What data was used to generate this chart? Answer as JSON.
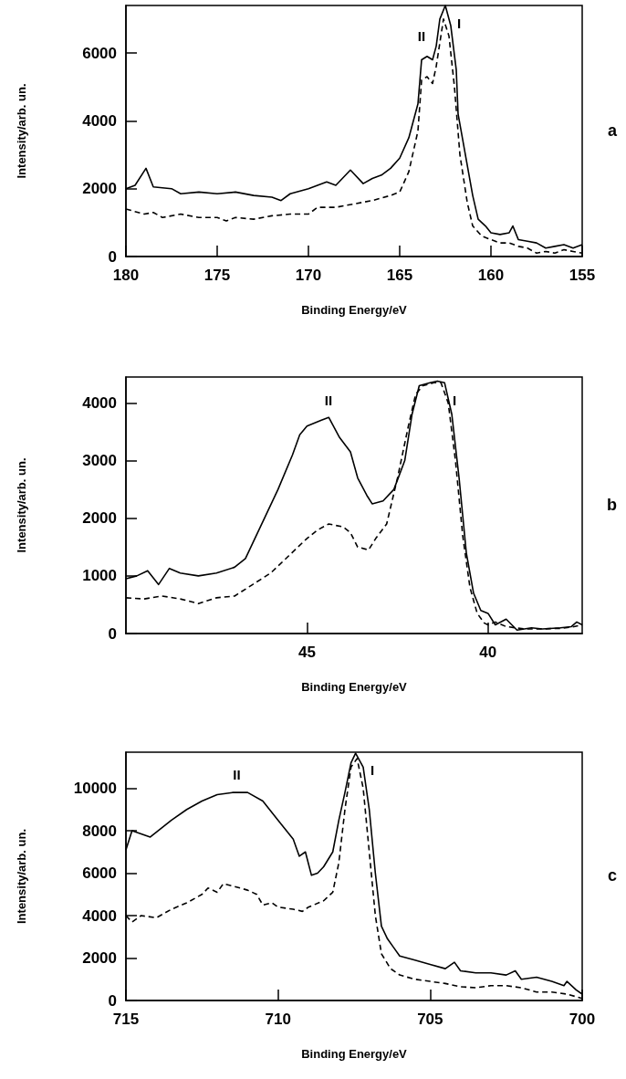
{
  "chart_data": [
    {
      "type": "line",
      "xlabel": "Binding Energy/eV",
      "ylabel": "Intensity/arb. un.",
      "xlim": [
        180,
        155
      ],
      "xticks": [
        180,
        175,
        170,
        165,
        160,
        155
      ],
      "ylim": [
        0,
        7400
      ],
      "yticks": [
        0,
        2000,
        4000,
        6000
      ],
      "grid": false,
      "x": [
        180,
        179.5,
        178.9,
        178.5,
        177.5,
        177,
        176,
        175,
        174,
        173,
        172,
        171.5,
        171,
        170,
        169,
        168.5,
        167.7,
        167,
        166.5,
        166,
        165.5,
        165,
        164.5,
        164,
        163.8,
        163.5,
        163.2,
        163,
        162.8,
        162.5,
        162.2,
        161.9,
        161.8,
        161.5,
        161,
        160.7,
        160.3,
        160,
        159.5,
        159,
        158.8,
        158.5,
        158,
        157.5,
        157,
        156.5,
        156,
        155.5,
        155
      ],
      "series": [
        {
          "color": "#000000",
          "line_style": "solid",
          "values": [
            2000,
            2100,
            2600,
            2050,
            2000,
            1850,
            1900,
            1850,
            1900,
            1800,
            1750,
            1650,
            1850,
            2000,
            2200,
            2100,
            2550,
            2150,
            2300,
            2400,
            2600,
            2900,
            3500,
            4500,
            5800,
            5900,
            5800,
            6200,
            7000,
            7400,
            6800,
            5500,
            4200,
            3300,
            1800,
            1100,
            900,
            700,
            650,
            700,
            900,
            500,
            450,
            400,
            250,
            300,
            350,
            250,
            350
          ]
        },
        {
          "color": "#000000",
          "line_style": "dashed",
          "x": [
            180,
            179,
            178.5,
            178,
            177,
            176,
            175,
            174.5,
            174,
            173,
            172,
            171,
            170,
            169.5,
            168.5,
            167.5,
            166.5,
            165.5,
            165,
            164.5,
            164,
            163.8,
            163.5,
            163.2,
            163,
            162.8,
            162.6,
            162.3,
            162,
            161.7,
            161.3,
            161,
            160.5,
            160,
            159.5,
            159,
            158.5,
            158,
            157.5,
            157,
            156.5,
            156,
            155.5,
            155
          ],
          "values": [
            1400,
            1250,
            1300,
            1150,
            1250,
            1150,
            1150,
            1050,
            1150,
            1100,
            1200,
            1250,
            1250,
            1450,
            1450,
            1550,
            1650,
            1800,
            1900,
            2500,
            3700,
            5200,
            5300,
            5100,
            5600,
            6300,
            7000,
            6500,
            5000,
            3000,
            1600,
            900,
            600,
            500,
            400,
            400,
            300,
            250,
            100,
            150,
            100,
            200,
            150,
            100
          ]
        }
      ],
      "annotations": [
        "II",
        "I",
        "a"
      ]
    },
    {
      "type": "line",
      "xlabel": "Binding Energy/eV",
      "ylabel": "Intensity/arb. un.",
      "xlim": [
        50,
        37.4
      ],
      "xticks": [
        45,
        40
      ],
      "ylim": [
        0,
        4450
      ],
      "yticks": [
        0,
        1000,
        2000,
        3000,
        4000
      ],
      "grid": false,
      "x": [
        50,
        49.7,
        49.4,
        49.1,
        48.8,
        48.5,
        48,
        47.5,
        47,
        46.7,
        46.4,
        46.1,
        45.8,
        45.4,
        45.2,
        45,
        44.6,
        44.4,
        44.1,
        43.8,
        43.6,
        43.35,
        43.2,
        42.9,
        42.6,
        42.3,
        42.1,
        41.9,
        41.6,
        41.4,
        41.2,
        41,
        40.8,
        40.6,
        40.4,
        40.2,
        40,
        39.8,
        39.5,
        39.2,
        38.8,
        38.5,
        38,
        37.7,
        37.55,
        37.4
      ],
      "series": [
        {
          "color": "#000000",
          "line_style": "solid",
          "values": [
            950,
            1000,
            1090,
            850,
            1130,
            1050,
            1000,
            1050,
            1150,
            1300,
            1700,
            2100,
            2500,
            3100,
            3450,
            3600,
            3700,
            3750,
            3400,
            3150,
            2700,
            2400,
            2250,
            2300,
            2500,
            3000,
            3800,
            4300,
            4350,
            4380,
            4350,
            3800,
            2700,
            1400,
            700,
            400,
            350,
            150,
            250,
            60,
            100,
            80,
            100,
            120,
            200,
            150
          ]
        },
        {
          "color": "#000000",
          "line_style": "dashed",
          "x": [
            50,
            49.5,
            49,
            48.5,
            48,
            47.5,
            47,
            46.5,
            46,
            45.5,
            45,
            44.7,
            44.4,
            44,
            43.8,
            43.6,
            43.3,
            43.1,
            42.8,
            42.5,
            42.2,
            42,
            41.8,
            41.5,
            41.3,
            41.1,
            40.9,
            40.7,
            40.5,
            40.3,
            40.1,
            40,
            39.8,
            39.5,
            39,
            38.5,
            38,
            37.7,
            37.4
          ],
          "values": [
            620,
            600,
            650,
            600,
            520,
            620,
            650,
            850,
            1050,
            1350,
            1650,
            1800,
            1900,
            1850,
            1750,
            1500,
            1450,
            1650,
            1900,
            2700,
            3600,
            4150,
            4300,
            4350,
            4350,
            4000,
            3000,
            1700,
            800,
            350,
            180,
            150,
            200,
            120,
            80,
            80,
            90,
            110,
            150
          ]
        }
      ],
      "annotations": [
        "II",
        "I",
        "b"
      ]
    },
    {
      "type": "line",
      "xlabel": "Binding Energy/eV",
      "ylabel": "Intensity/arb. un.",
      "xlim": [
        715,
        700
      ],
      "xticks": [
        715,
        710,
        705,
        700
      ],
      "ylim": [
        0,
        11700
      ],
      "yticks": [
        0,
        2000,
        4000,
        6000,
        8000,
        10000
      ],
      "grid": false,
      "x": [
        715,
        714.8,
        714.5,
        714.2,
        713.5,
        713,
        712.5,
        712,
        711.5,
        711,
        710.5,
        710,
        709.5,
        709.3,
        709.1,
        708.9,
        708.7,
        708.5,
        708.2,
        708,
        707.8,
        707.6,
        707.45,
        707.2,
        707,
        706.8,
        706.6,
        706.4,
        706.2,
        706,
        705.5,
        705,
        704.5,
        704.2,
        704,
        703.5,
        703,
        702.5,
        702.2,
        702,
        701.5,
        701,
        700.6,
        700.5,
        700.2,
        700
      ],
      "series": [
        {
          "color": "#000000",
          "line_style": "solid",
          "values": [
            7100,
            8000,
            7850,
            7700,
            8500,
            9000,
            9400,
            9700,
            9800,
            9800,
            9400,
            8500,
            7600,
            6800,
            7000,
            5900,
            6000,
            6300,
            7000,
            8500,
            9800,
            11200,
            11650,
            11000,
            9000,
            6000,
            3500,
            2900,
            2500,
            2100,
            1900,
            1700,
            1500,
            1800,
            1400,
            1300,
            1300,
            1200,
            1400,
            1000,
            1100,
            900,
            700,
            900,
            500,
            300
          ]
        },
        {
          "color": "#000000",
          "line_style": "dashed",
          "x": [
            715,
            714.8,
            714.5,
            714,
            713.5,
            713,
            712.5,
            712.3,
            712,
            711.8,
            711.5,
            711,
            710.7,
            710.5,
            710.2,
            710,
            709.5,
            709.2,
            709,
            708.5,
            708.2,
            708,
            707.8,
            707.6,
            707.4,
            707.2,
            707,
            706.8,
            706.6,
            706.3,
            706,
            705.5,
            705,
            704.5,
            704,
            703.5,
            703,
            702.5,
            702,
            701.5,
            701,
            700.5,
            700
          ],
          "values": [
            4000,
            3700,
            4000,
            3900,
            4300,
            4600,
            5000,
            5300,
            5100,
            5500,
            5400,
            5200,
            5000,
            4500,
            4600,
            4400,
            4300,
            4200,
            4400,
            4700,
            5100,
            6500,
            9000,
            11000,
            11400,
            10000,
            7000,
            4000,
            2200,
            1500,
            1200,
            1000,
            900,
            800,
            650,
            600,
            700,
            700,
            600,
            400,
            400,
            300,
            100
          ]
        }
      ],
      "annotations": [
        "II",
        "I",
        "c"
      ]
    }
  ]
}
